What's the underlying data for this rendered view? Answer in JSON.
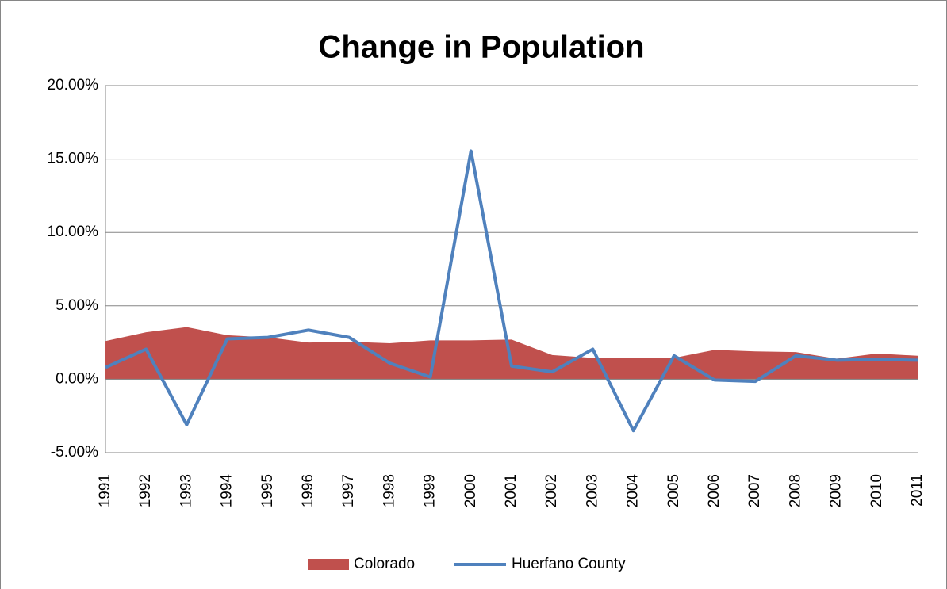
{
  "chart_data": {
    "type": "line",
    "title": "Change in Population",
    "categories": [
      "1991",
      "1992",
      "1993",
      "1994",
      "1995",
      "1996",
      "1997",
      "1998",
      "1999",
      "2000",
      "2001",
      "2002",
      "2003",
      "2004",
      "2005",
      "2006",
      "2007",
      "2008",
      "2009",
      "2010",
      "2011"
    ],
    "series": [
      {
        "name": "Colorado",
        "type": "area",
        "color": "#c0504d",
        "values": [
          2.6,
          3.2,
          3.55,
          3.0,
          2.85,
          2.5,
          2.55,
          2.45,
          2.65,
          2.65,
          2.7,
          1.65,
          1.45,
          1.45,
          1.45,
          2.0,
          1.9,
          1.85,
          1.4,
          1.75,
          1.6
        ]
      },
      {
        "name": "Huerfano County",
        "type": "line",
        "color": "#4f81bd",
        "values": [
          0.8,
          2.05,
          -3.1,
          2.75,
          2.85,
          3.35,
          2.85,
          1.1,
          0.15,
          15.55,
          0.9,
          0.5,
          2.05,
          -3.5,
          1.6,
          -0.05,
          -0.15,
          1.6,
          1.3,
          1.35,
          1.3
        ]
      }
    ],
    "ylim": [
      -5,
      20
    ],
    "yticks": [
      {
        "value": -5,
        "label": "-5.00%"
      },
      {
        "value": 0,
        "label": "0.00%"
      },
      {
        "value": 5,
        "label": "5.00%"
      },
      {
        "value": 10,
        "label": "10.00%"
      },
      {
        "value": 15,
        "label": "15.00%"
      },
      {
        "value": 20,
        "label": "20.00%"
      }
    ],
    "grid": true,
    "legend": "bottom"
  }
}
